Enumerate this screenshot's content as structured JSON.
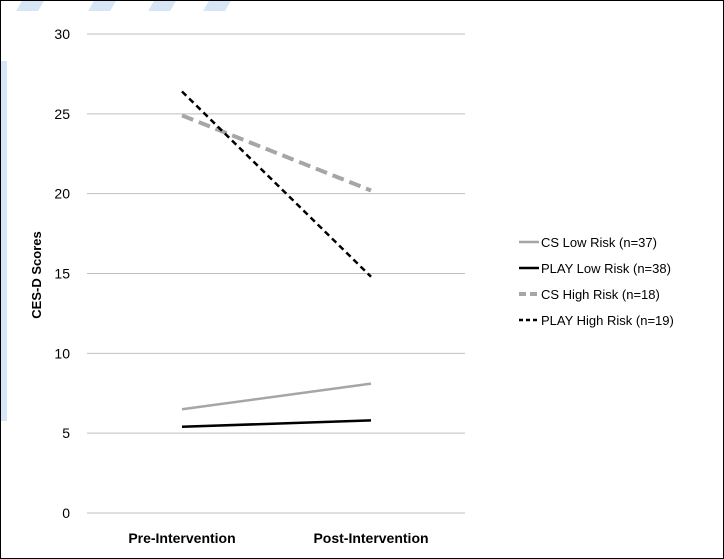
{
  "chart_data": {
    "type": "line",
    "title": "",
    "xlabel": "",
    "ylabel": "CES-D Scores",
    "categories": [
      "Pre-Intervention",
      "Post-Intervention"
    ],
    "ylim": [
      0,
      30
    ],
    "yticks": [
      0,
      5,
      10,
      15,
      20,
      25,
      30
    ],
    "grid": true,
    "legend_position": "right",
    "series": [
      {
        "name": "CS Low Risk (n=37)",
        "values": [
          6.5,
          8.1
        ],
        "color": "#a6a6a6",
        "dash": "solid",
        "weight": "normal"
      },
      {
        "name": "PLAY Low Risk (n=38)",
        "values": [
          5.4,
          5.8
        ],
        "color": "#000000",
        "dash": "solid",
        "weight": "normal"
      },
      {
        "name": "CS High Risk (n=18)",
        "values": [
          24.9,
          20.2
        ],
        "color": "#a6a6a6",
        "dash": "dashed",
        "weight": "bold"
      },
      {
        "name": "PLAY High Risk (n=19)",
        "values": [
          26.4,
          14.8
        ],
        "color": "#000000",
        "dash": "dashed",
        "weight": "normal"
      }
    ]
  }
}
